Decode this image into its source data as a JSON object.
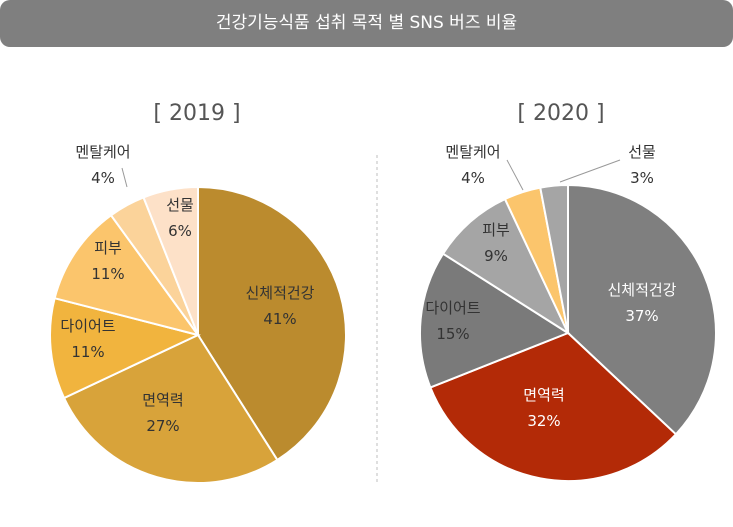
{
  "title": "건강기능식품 섭취 목적 별 SNS 버즈 비율",
  "chart_data": [
    {
      "type": "pie",
      "title": "[ 2019 ]",
      "categories": [
        "신체적건강",
        "면역력",
        "다이어트",
        "피부",
        "멘탈케어",
        "선물"
      ],
      "values": [
        41,
        27,
        11,
        11,
        4,
        6
      ],
      "value_labels": [
        "41%",
        "27%",
        "11%",
        "11%",
        "4%",
        "6%"
      ],
      "colors": [
        "#bb8b2e",
        "#d8a33a",
        "#f1b43e",
        "#fbc56c",
        "#fbd39a",
        "#fde1c8"
      ]
    },
    {
      "type": "pie",
      "title": "[ 2020 ]",
      "categories": [
        "신체적건강",
        "면역력",
        "다이어트",
        "피부",
        "멘탈케어",
        "선물"
      ],
      "values": [
        37,
        32,
        15,
        9,
        4,
        3
      ],
      "value_labels": [
        "37%",
        "32%",
        "15%",
        "9%",
        "4%",
        "3%"
      ],
      "colors": [
        "#7f7f7f",
        "#b32a07",
        "#7a7a7a",
        "#a5a5a5",
        "#fbc56c",
        "#a5a5a5"
      ]
    }
  ]
}
